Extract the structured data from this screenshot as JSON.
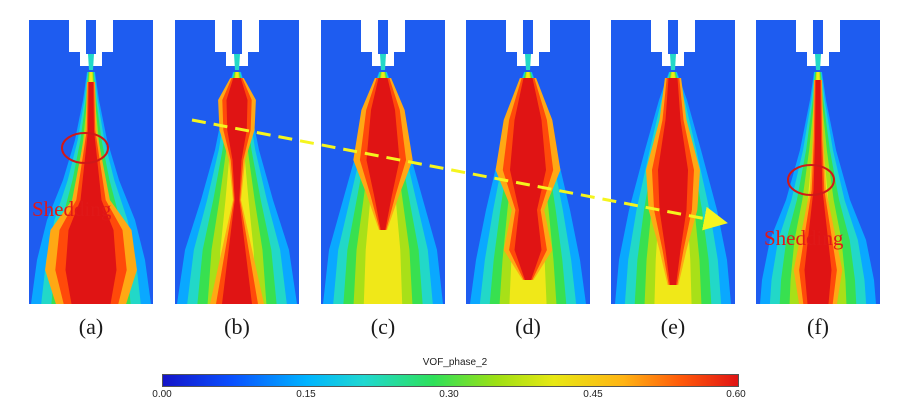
{
  "panels": [
    {
      "label": "(a)"
    },
    {
      "label": "(b)"
    },
    {
      "label": "(c)"
    },
    {
      "label": "(d)"
    },
    {
      "label": "(e)"
    },
    {
      "label": "(f)"
    }
  ],
  "annotations": {
    "shedding_left": "Shedding",
    "shedding_right": "Shedding"
  },
  "colorbar": {
    "title": "VOF_phase_2",
    "ticks": [
      "0.00",
      "0.15",
      "0.30",
      "0.45",
      "0.60"
    ],
    "colors": [
      "#1414c8",
      "#0a50ff",
      "#00b4ff",
      "#2ee05a",
      "#e8e814",
      "#ffb414",
      "#e01414"
    ]
  },
  "colors": {
    "background_field": "#1e5cf0",
    "annotation_red": "#e01818",
    "arrow_yellow": "#f5f51e"
  }
}
